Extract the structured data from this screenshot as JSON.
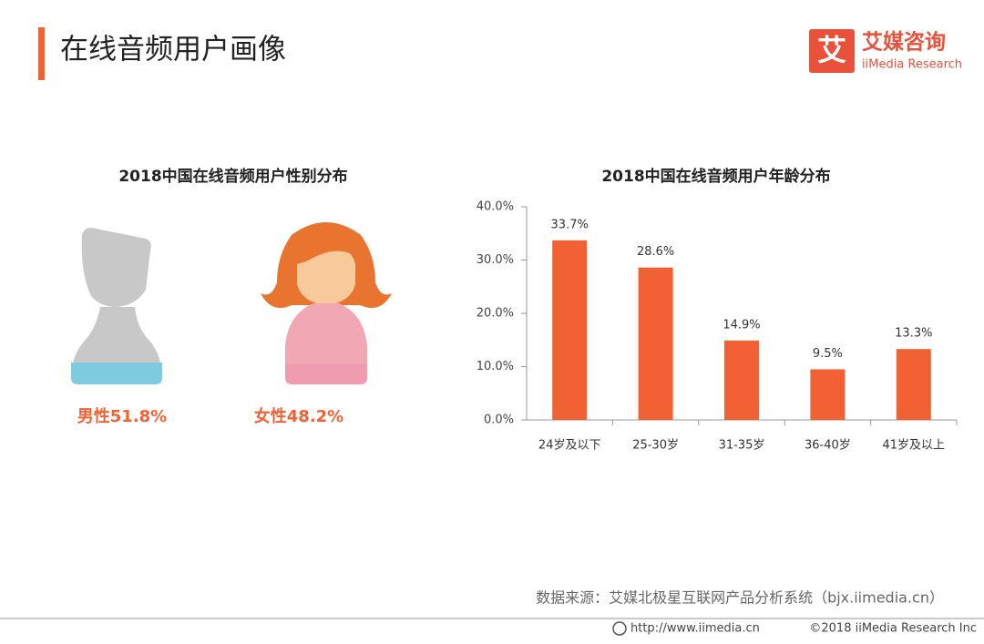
{
  "header": {
    "title": "在线音频用户画像",
    "logo_mark": "艾",
    "logo_name": "艾媒咨询",
    "logo_sub": "iiMedia Research"
  },
  "chart_data": [
    {
      "type": "pictogram",
      "title": "2018中国在线音频用户性别分布",
      "categories": [
        "男性",
        "女性"
      ],
      "values": [
        51.8,
        48.2
      ],
      "value_labels": [
        "男性51.8%",
        "女性48.2%"
      ],
      "colors": [
        "#7ecbe0",
        "#ee9cae"
      ]
    },
    {
      "type": "bar",
      "title": "2018中国在线音频用户年龄分布",
      "categories": [
        "24岁及以下",
        "25-30岁",
        "31-35岁",
        "36-40岁",
        "41岁及以上"
      ],
      "values": [
        33.7,
        28.6,
        14.9,
        9.5,
        13.3
      ],
      "value_labels": [
        "33.7%",
        "28.6%",
        "14.9%",
        "9.5%",
        "13.3%"
      ],
      "color": "#f26134",
      "ylim": [
        0,
        40
      ],
      "yticks": [
        {
          "value": 0,
          "label": "0.0%"
        },
        {
          "value": 10,
          "label": "10.0%"
        },
        {
          "value": 20,
          "label": "20.0%"
        },
        {
          "value": 30,
          "label": "30.0%"
        },
        {
          "value": 40,
          "label": "40.0%"
        }
      ]
    }
  ],
  "footer": {
    "source": "数据来源：艾媒北极星互联网产品分析系统（bjx.iimedia.cn）",
    "url": "http://www.iimedia.cn",
    "copyright": "©2018 iiMedia Research Inc"
  }
}
